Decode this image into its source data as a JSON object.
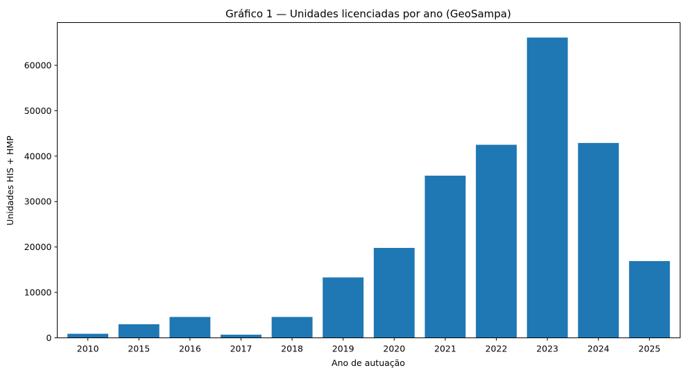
{
  "chart_data": {
    "type": "bar",
    "title": "Gráfico 1 — Unidades licenciadas por ano (GeoSampa)",
    "xlabel": "Ano de autuação",
    "ylabel": "Unidades HIS + HMP",
    "categories": [
      "2010",
      "2015",
      "2016",
      "2017",
      "2018",
      "2019",
      "2020",
      "2021",
      "2022",
      "2023",
      "2024",
      "2025"
    ],
    "values": [
      900,
      3000,
      4600,
      700,
      4600,
      13300,
      19800,
      35700,
      42500,
      66100,
      42900,
      16900
    ],
    "ylim": [
      0,
      69400
    ],
    "yticks": [
      0,
      10000,
      20000,
      30000,
      40000,
      50000,
      60000
    ],
    "grid": false,
    "bar_color": "#1f77b4"
  }
}
